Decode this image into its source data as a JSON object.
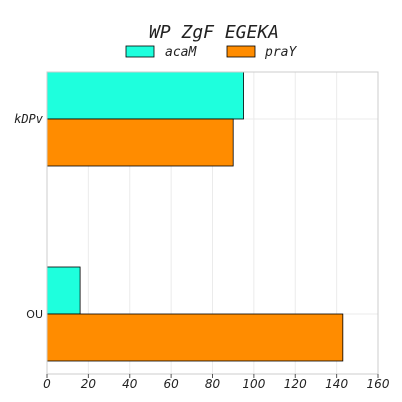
{
  "chart_data": {
    "type": "bar",
    "orientation": "horizontal",
    "title": "WP ZgF EGEKA",
    "xlabel": "",
    "ylabel": "",
    "categories": [
      "kDPv",
      "OU"
    ],
    "series": [
      {
        "name": "acaM",
        "color": "#1effdd",
        "values": [
          95,
          16
        ]
      },
      {
        "name": "praY",
        "color": "#ff8c00",
        "values": [
          90,
          143
        ]
      }
    ],
    "xlim": [
      0,
      160
    ],
    "xticks": [
      0,
      20,
      40,
      60,
      80,
      100,
      120,
      140,
      160
    ],
    "grid": true,
    "legend_position": "top-center"
  }
}
